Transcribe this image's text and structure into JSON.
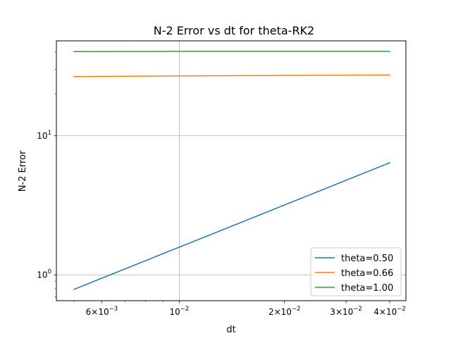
{
  "chart_data": {
    "type": "line",
    "title": "N-2 Error vs dt for theta-RK2",
    "xlabel": "dt",
    "ylabel": "N-2 Error",
    "xscale": "log",
    "yscale": "log",
    "xlim": [
      0.00445,
      0.0445
    ],
    "ylim": [
      0.655,
      48
    ],
    "grid": "major",
    "legend_position": "lower-right",
    "x_ticks": [
      {
        "value": 0.006,
        "base": "6",
        "sep": "×",
        "pow": "10",
        "exp": "−3"
      },
      {
        "value": 0.01,
        "base": "",
        "sep": "",
        "pow": "10",
        "exp": "−2"
      },
      {
        "value": 0.02,
        "base": "2",
        "sep": "×",
        "pow": "10",
        "exp": "−2"
      },
      {
        "value": 0.03,
        "base": "3",
        "sep": "×",
        "pow": "10",
        "exp": "−2"
      },
      {
        "value": 0.04,
        "base": "4",
        "sep": "×",
        "pow": "10",
        "exp": "−2"
      }
    ],
    "y_ticks": [
      {
        "value": 1,
        "pow": "10",
        "exp": "0"
      },
      {
        "value": 10,
        "pow": "10",
        "exp": "1"
      }
    ],
    "x_major_grid": [
      0.01
    ],
    "x_minor_ticks": [
      0.005,
      0.007,
      0.008,
      0.009
    ],
    "y_major_grid": [
      1,
      10
    ],
    "y_minor_ticks": [
      0.7,
      0.8,
      0.9,
      20,
      30,
      40
    ],
    "series": [
      {
        "name": "theta=0.50",
        "color": "#1f77b4",
        "x": [
          0.005,
          0.04
        ],
        "y": [
          0.79,
          6.4
        ]
      },
      {
        "name": "theta=0.66",
        "color": "#ff7f0e",
        "x": [
          0.005,
          0.01,
          0.02,
          0.04
        ],
        "y": [
          26.6,
          26.9,
          27.1,
          27.3
        ]
      },
      {
        "name": "theta=1.00",
        "color": "#2ca02c",
        "x": [
          0.005,
          0.01,
          0.02,
          0.04
        ],
        "y": [
          40.2,
          40.3,
          40.3,
          40.3
        ]
      }
    ]
  }
}
